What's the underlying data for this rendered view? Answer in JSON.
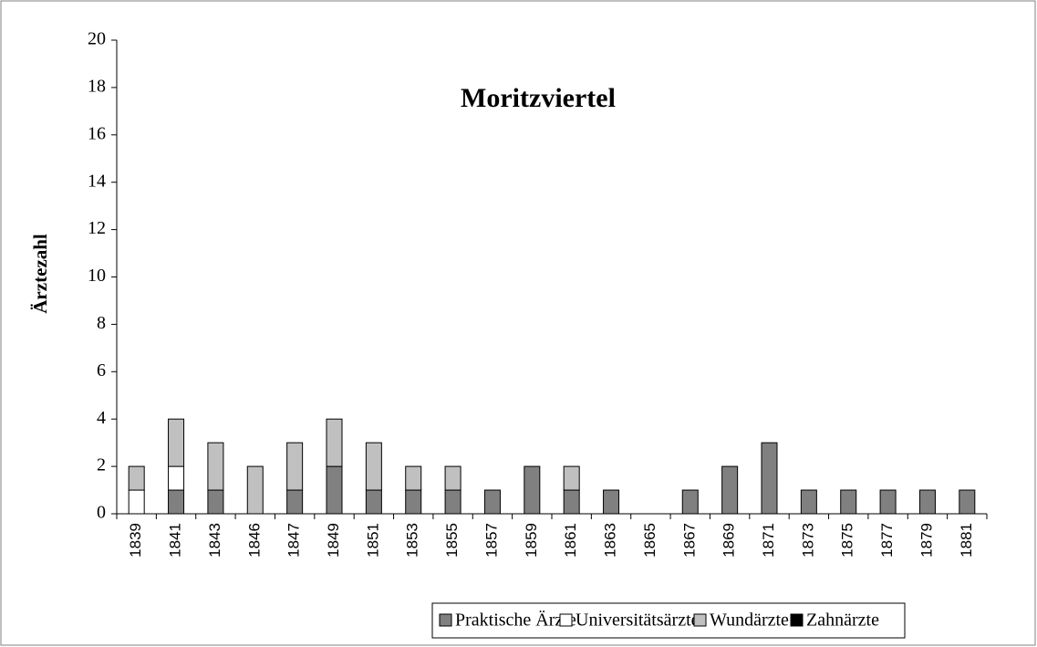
{
  "chart_data": {
    "type": "stacked_bar",
    "title": "Moritzviertel",
    "y_label": "Ärztezahl",
    "categories": [
      "1839",
      "1841",
      "1843",
      "1846",
      "1847",
      "1849",
      "1851",
      "1853",
      "1855",
      "1857",
      "1859",
      "1861",
      "1863",
      "1865",
      "1867",
      "1869",
      "1871",
      "1873",
      "1875",
      "1877",
      "1879",
      "1881"
    ],
    "series": [
      {
        "name": "Praktische Ärzte",
        "color": "#808080",
        "values": [
          0,
          1,
          1,
          0,
          1,
          2,
          1,
          1,
          1,
          1,
          2,
          1,
          1,
          0,
          1,
          2,
          3,
          1,
          1,
          1,
          1,
          1
        ]
      },
      {
        "name": "Universitätsärzte",
        "color": "#ffffff",
        "values": [
          1,
          1,
          0,
          0,
          0,
          0,
          0,
          0,
          0,
          0,
          0,
          0,
          0,
          0,
          0,
          0,
          0,
          0,
          0,
          0,
          0,
          0
        ]
      },
      {
        "name": "Wundärzte",
        "color": "#c0c0c0",
        "values": [
          1,
          2,
          2,
          2,
          2,
          2,
          2,
          1,
          1,
          0,
          0,
          1,
          0,
          0,
          0,
          0,
          0,
          0,
          0,
          0,
          0,
          0
        ]
      },
      {
        "name": "Zahnärzte",
        "color": "#000000",
        "values": [
          0,
          0,
          0,
          0,
          0,
          0,
          0,
          0,
          0,
          0,
          0,
          0,
          0,
          0,
          0,
          0,
          0,
          0,
          0,
          0,
          0,
          0
        ]
      }
    ],
    "ylim": [
      0,
      20
    ],
    "yticks": [
      0,
      2,
      4,
      6,
      8,
      10,
      12,
      14,
      16,
      18,
      20
    ],
    "legend": "bottom"
  }
}
